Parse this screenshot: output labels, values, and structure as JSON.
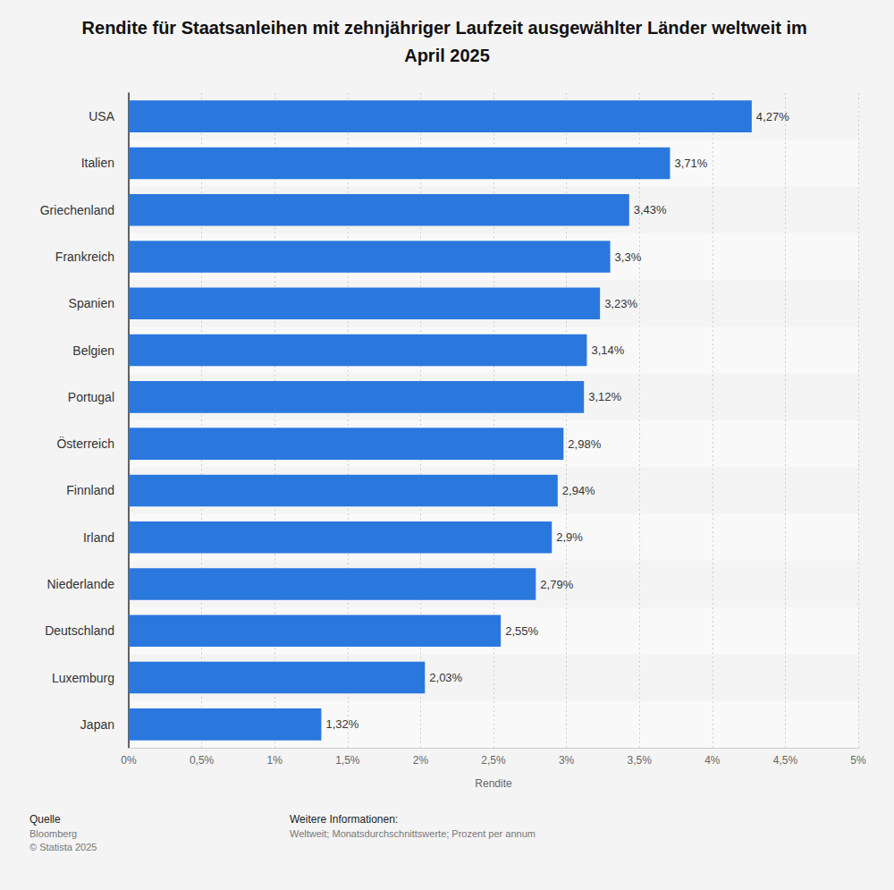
{
  "chart_data": {
    "type": "bar",
    "orientation": "horizontal",
    "title": "Rendite für Staatsanleihen mit zehnjähriger Laufzeit ausgewählter Länder weltweit im April 2025",
    "xlabel": "Rendite",
    "categories": [
      "USA",
      "Italien",
      "Griechenland",
      "Frankreich",
      "Spanien",
      "Belgien",
      "Portugal",
      "Österreich",
      "Finnland",
      "Irland",
      "Niederlande",
      "Deutschland",
      "Luxemburg",
      "Japan"
    ],
    "values": [
      4.27,
      3.71,
      3.43,
      3.3,
      3.23,
      3.14,
      3.12,
      2.98,
      2.94,
      2.9,
      2.79,
      2.55,
      2.03,
      1.32
    ],
    "value_labels": [
      "4,27%",
      "3,71%",
      "3,43%",
      "3,3%",
      "3,23%",
      "3,14%",
      "3,12%",
      "2,98%",
      "2,94%",
      "2,9%",
      "2,79%",
      "2,55%",
      "2,03%",
      "1,32%"
    ],
    "color": "#2a78de",
    "xlim": [
      0,
      5
    ],
    "xticks": [
      {
        "value": 0,
        "label": "0%"
      },
      {
        "value": 0.5,
        "label": "0,5%"
      },
      {
        "value": 1,
        "label": "1%"
      },
      {
        "value": 1.5,
        "label": "1,5%"
      },
      {
        "value": 2,
        "label": "2%"
      },
      {
        "value": 2.5,
        "label": "2,5%"
      },
      {
        "value": 3,
        "label": "3%"
      },
      {
        "value": 3.5,
        "label": "3,5%"
      },
      {
        "value": 4,
        "label": "4%"
      },
      {
        "value": 4.5,
        "label": "4,5%"
      },
      {
        "value": 5,
        "label": "5%"
      }
    ],
    "grid": true,
    "data_labels": true,
    "source": {
      "heading": "Quelle",
      "lines": [
        "Bloomberg",
        "© Statista 2025"
      ]
    },
    "info": {
      "heading": "Weitere Informationen:",
      "lines": [
        "Weltweit; Monatsdurchschnittswerte; Prozent per annum"
      ]
    }
  }
}
